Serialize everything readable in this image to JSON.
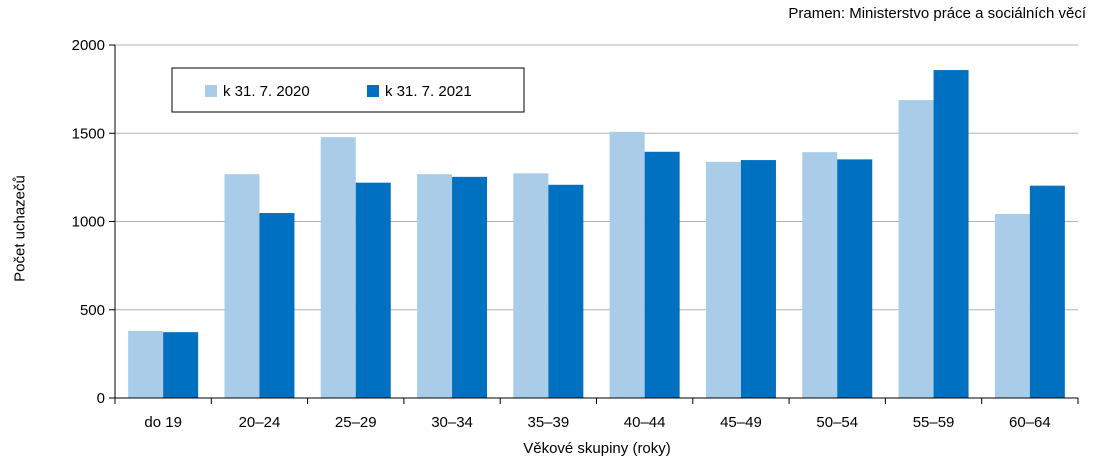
{
  "source": "Pramen: Ministerstvo práce a sociálních věcí",
  "chart_data": {
    "type": "bar",
    "title": "",
    "xlabel": "Věkové skupiny (roky)",
    "ylabel": "Počet uchazečů",
    "ylim": [
      0,
      2000
    ],
    "yticks": [
      "0",
      "500",
      "1000",
      "1500",
      "2000"
    ],
    "grid": true,
    "legend_position": "top-left",
    "categories": [
      "do 19",
      "20–24",
      "25–29",
      "30–34",
      "35–39",
      "40–44",
      "45–49",
      "50–54",
      "55–59",
      "60–64"
    ],
    "series": [
      {
        "name": "k 31. 7. 2020",
        "color": "#a9cde8",
        "values": [
          380,
          1268,
          1478,
          1268,
          1273,
          1508,
          1338,
          1393,
          1688,
          1043
        ]
      },
      {
        "name": "k 31. 7. 2021",
        "color": "#0070c0",
        "values": [
          373,
          1048,
          1220,
          1253,
          1208,
          1395,
          1348,
          1352,
          1858,
          1203
        ]
      }
    ]
  }
}
